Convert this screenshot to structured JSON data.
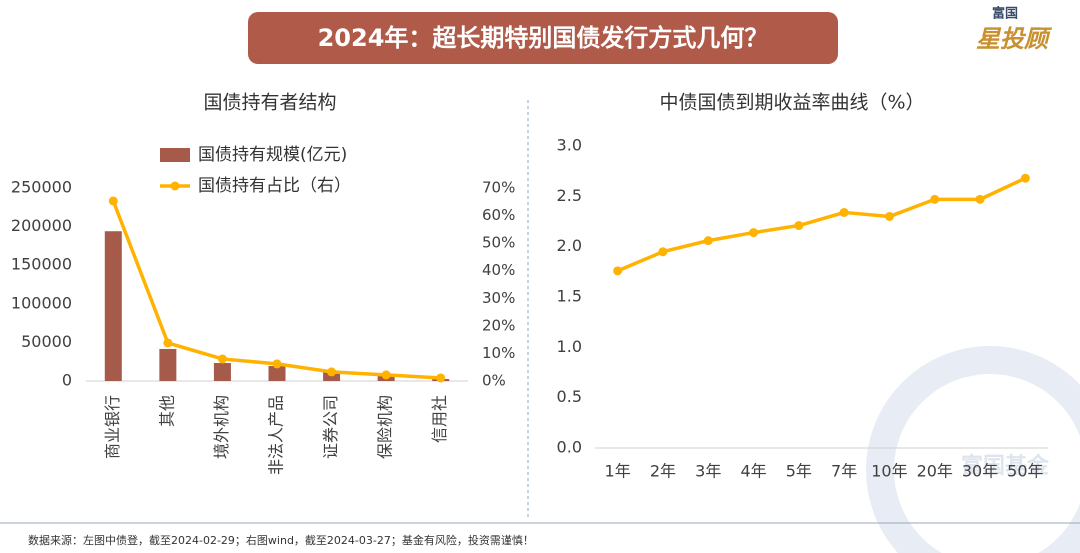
{
  "header": {
    "title": "2024年：超长期特别国债发行方式几何？",
    "logo_top": "富国",
    "logo_main": "星投顾"
  },
  "footer": "数据来源：左图中债登，截至2024-02-29；右图wind，截至2024-03-27；基金有风险，投资需谨慎！",
  "watermark": "富国基金",
  "chart_data": [
    {
      "type": "bar",
      "title": "国债持有者结构",
      "categories": [
        "商业银行",
        "其他",
        "境外机构",
        "非法人产品",
        "证券公司",
        "保险机构",
        "信用社"
      ],
      "series": [
        {
          "name": "国债持有规模(亿元)",
          "color": "#a65a4a",
          "values": [
            194000,
            41500,
            23300,
            19400,
            11700,
            7800,
            2600
          ]
        },
        {
          "name": "国债持有占比（右）",
          "color": "#ffb300",
          "type": "line",
          "axis": "y2",
          "values": [
            65.3,
            13.8,
            8.0,
            6.2,
            3.3,
            2.2,
            1.1
          ]
        }
      ],
      "ylim": [
        0,
        250000
      ],
      "yticks": [
        0,
        50000,
        100000,
        150000,
        200000,
        250000
      ],
      "y2lim": [
        0,
        70
      ],
      "y2ticks": [
        {
          "value": 0,
          "label": "0%"
        },
        {
          "value": 10,
          "label": "10%"
        },
        {
          "value": 20,
          "label": "20%"
        },
        {
          "value": 30,
          "label": "30%"
        },
        {
          "value": 40,
          "label": "40%"
        },
        {
          "value": 50,
          "label": "50%"
        },
        {
          "value": 60,
          "label": "60%"
        },
        {
          "value": 70,
          "label": "70%"
        }
      ],
      "grid": false
    },
    {
      "type": "line",
      "title": "中债国债到期收益率曲线（%）",
      "categories": [
        "1年",
        "2年",
        "3年",
        "4年",
        "5年",
        "7年",
        "10年",
        "20年",
        "30年",
        "50年"
      ],
      "series": [
        {
          "color": "#ffb300",
          "values": [
            1.76,
            1.95,
            2.06,
            2.14,
            2.21,
            2.34,
            2.3,
            2.47,
            2.47,
            2.68
          ]
        }
      ],
      "ylim": [
        0,
        3
      ],
      "yticks": [
        {
          "value": 0,
          "label": "0.0"
        },
        0.5,
        {
          "value": 1,
          "label": "1.0"
        },
        1.5,
        {
          "value": 2,
          "label": "2.0"
        },
        2.5,
        {
          "value": 3,
          "label": "3.0"
        }
      ],
      "grid": false
    }
  ]
}
